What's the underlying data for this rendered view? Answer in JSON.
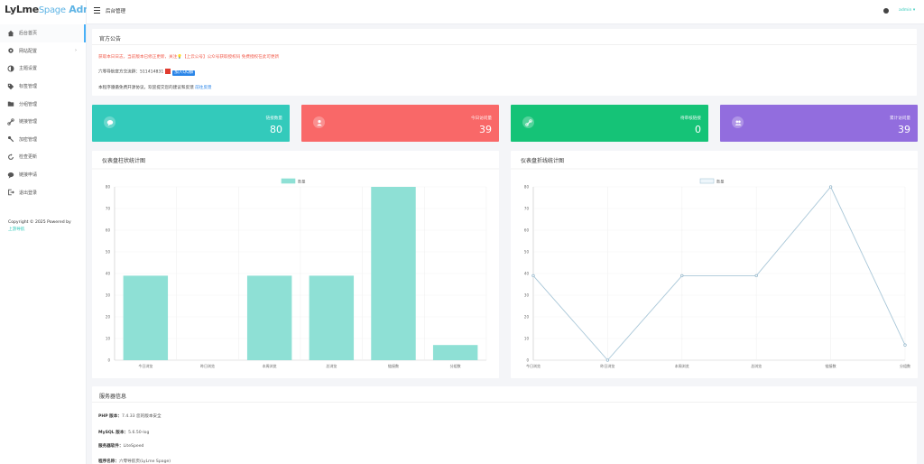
{
  "app": {
    "logo_main": "LyLme",
    "logo_sub": "Spage",
    "logo_admin": "Admin",
    "page_title": "后台管理"
  },
  "sidebar": {
    "items": [
      {
        "label": "后台首页",
        "icon": "home-icon"
      },
      {
        "label": "网站配置",
        "icon": "settings-icon"
      },
      {
        "label": "主题设置",
        "icon": "theme-icon"
      },
      {
        "label": "标签管理",
        "icon": "tag-icon"
      },
      {
        "label": "分组管理",
        "icon": "folder-icon"
      },
      {
        "label": "链接管理",
        "icon": "link-icon"
      },
      {
        "label": "加密管理",
        "icon": "key-icon"
      },
      {
        "label": "检查更新",
        "icon": "refresh-icon"
      },
      {
        "label": "链接申请",
        "icon": "comment-icon"
      },
      {
        "label": "退出登录",
        "icon": "logout-icon"
      }
    ],
    "copyright": "Copyright © 2025 Powered by",
    "copyright_link": "上游导航"
  },
  "header": {
    "user": "admin"
  },
  "notice": {
    "title": "官方公告",
    "line1": "获取本日日志，当前版本已修正更新，关注💡【上云公号】公众号获取授权码 免费授权在此可更新",
    "line2_prefix": "六零导航官方交流群：",
    "line2_group": "511414831",
    "line2_button": "加入QQ群",
    "line3_prefix": "本程序遵循免费开源协议，欢迎提交您的建议和反馈",
    "line3_link": "前往反馈"
  },
  "stats": [
    {
      "label": "链接数量",
      "value": "80",
      "color": "#33cabb",
      "icon": "comment-icon"
    },
    {
      "label": "今日访问量",
      "value": "39",
      "color": "#f96868",
      "icon": "user-icon"
    },
    {
      "label": "待审核链接",
      "value": "0",
      "color": "#15c377",
      "icon": "link-icon"
    },
    {
      "label": "累计访问量",
      "value": "39",
      "color": "#926dde",
      "icon": "users-icon"
    }
  ],
  "charts": {
    "bar_title": "仪表盘柱状统计图",
    "line_title": "仪表盘折线统计图"
  },
  "chart_data": [
    {
      "type": "bar",
      "title": "仪表盘柱状统计图",
      "categories": [
        "今日浏览",
        "昨日浏览",
        "本周浏览",
        "总浏览",
        "链接数",
        "分组数"
      ],
      "series": [
        {
          "name": "数量",
          "values": [
            39,
            0,
            39,
            39,
            80,
            7
          ]
        }
      ],
      "ylim": [
        0,
        80
      ],
      "yticks": [
        0,
        10,
        20,
        30,
        40,
        50,
        60,
        70,
        80
      ],
      "ytick_labels": [
        "0",
        "10",
        "20",
        "30",
        "40",
        "50",
        "60",
        "70",
        "80"
      ],
      "color": "#8ee0d5",
      "grid": true,
      "legend": "top-center"
    },
    {
      "type": "line",
      "title": "仪表盘折线统计图",
      "categories": [
        "今日浏览",
        "昨日浏览",
        "本周浏览",
        "总浏览",
        "链接数",
        "分组数"
      ],
      "series": [
        {
          "name": "数量",
          "values": [
            39,
            0,
            39,
            39,
            80,
            7
          ]
        }
      ],
      "ylim": [
        0,
        80
      ],
      "yticks": [
        0,
        10,
        20,
        30,
        40,
        50,
        60,
        70,
        80
      ],
      "ytick_labels": [
        "0",
        "10",
        "20",
        "30",
        "40",
        "50",
        "60",
        "70",
        "80"
      ],
      "color": "#a9c7d8",
      "grid": true,
      "legend": "top-center"
    }
  ],
  "server": {
    "title": "服务器信息",
    "rows": [
      {
        "label": "PHP 版本：",
        "value": "7.4.33 您的版本安全"
      },
      {
        "label": "MySQL 版本：",
        "value": "5.6.50-log"
      },
      {
        "label": "服务器软件：",
        "value": "LiteSpeed"
      },
      {
        "label": "程序名称：",
        "value": "六零导航页(LyLme Spage)"
      }
    ]
  }
}
